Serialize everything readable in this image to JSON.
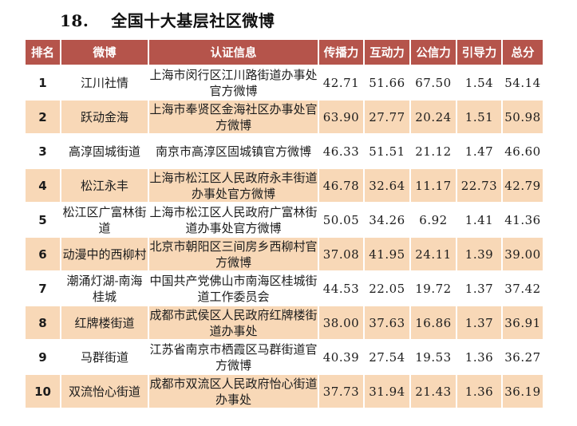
{
  "page": {
    "title_number": "18.",
    "title": "全国十大基层社区微博"
  },
  "colors": {
    "header_bg": "#b5544b",
    "stripe_bg": "#f8d8b7",
    "rank_red": "#c51412",
    "header_text": "#ffffff",
    "title_text": "#111111",
    "body_text": "#1c1c1c"
  },
  "table": {
    "columns": [
      "排名",
      "微博",
      "认证信息",
      "传播力",
      "互动力",
      "公信力",
      "引导力",
      "总分"
    ],
    "rows": [
      {
        "rank": "1",
        "weibo": "江川社情",
        "cert": "上海市闵行区江川路街道办事处官方微博",
        "spread": "42.71",
        "interact": "51.66",
        "credibility": "67.50",
        "guidance": "1.54",
        "total": "54.14"
      },
      {
        "rank": "2",
        "weibo": "跃动金海",
        "cert": "上海市奉贤区金海社区办事处官方微博",
        "spread": "63.90",
        "interact": "27.77",
        "credibility": "20.24",
        "guidance": "1.51",
        "total": "50.98"
      },
      {
        "rank": "3",
        "weibo": "高淳固城街道",
        "cert": "南京市高淳区固城镇官方微博",
        "spread": "46.33",
        "interact": "51.51",
        "credibility": "21.12",
        "guidance": "1.47",
        "total": "46.60"
      },
      {
        "rank": "4",
        "weibo": "松江永丰",
        "cert": "上海市松江区人民政府永丰街道办事处官方微博",
        "spread": "46.78",
        "interact": "32.64",
        "credibility": "11.17",
        "guidance": "22.73",
        "total": "42.79"
      },
      {
        "rank": "5",
        "weibo": "松江区广富林街道",
        "cert": "上海市松江区人民政府广富林街道办事处官方微博",
        "spread": "50.05",
        "interact": "34.26",
        "credibility": "6.92",
        "guidance": "1.41",
        "total": "41.36"
      },
      {
        "rank": "6",
        "weibo": "动漫中的西柳村",
        "cert": "北京市朝阳区三间房乡西柳村官方微博",
        "spread": "37.08",
        "interact": "41.95",
        "credibility": "24.11",
        "guidance": "1.39",
        "total": "39.00"
      },
      {
        "rank": "7",
        "weibo": "潮涌灯湖-南海桂城",
        "cert": "中国共产党佛山市南海区桂城街道工作委员会",
        "spread": "44.53",
        "interact": "22.05",
        "credibility": "19.72",
        "guidance": "1.37",
        "total": "37.42"
      },
      {
        "rank": "8",
        "weibo": "红牌楼街道",
        "cert": "成都市武侯区人民政府红牌楼街道办事处",
        "spread": "38.00",
        "interact": "37.63",
        "credibility": "16.86",
        "guidance": "1.37",
        "total": "36.91"
      },
      {
        "rank": "9",
        "weibo": "马群街道",
        "cert": "江苏省南京市栖霞区马群街道官方微博",
        "spread": "40.39",
        "interact": "27.54",
        "credibility": "19.53",
        "guidance": "1.36",
        "total": "36.27"
      },
      {
        "rank": "10",
        "weibo": "双流怡心街道",
        "cert": "成都市双流区人民政府怡心街道办事处",
        "spread": "37.73",
        "interact": "31.94",
        "credibility": "21.43",
        "guidance": "1.36",
        "total": "36.19"
      }
    ]
  }
}
